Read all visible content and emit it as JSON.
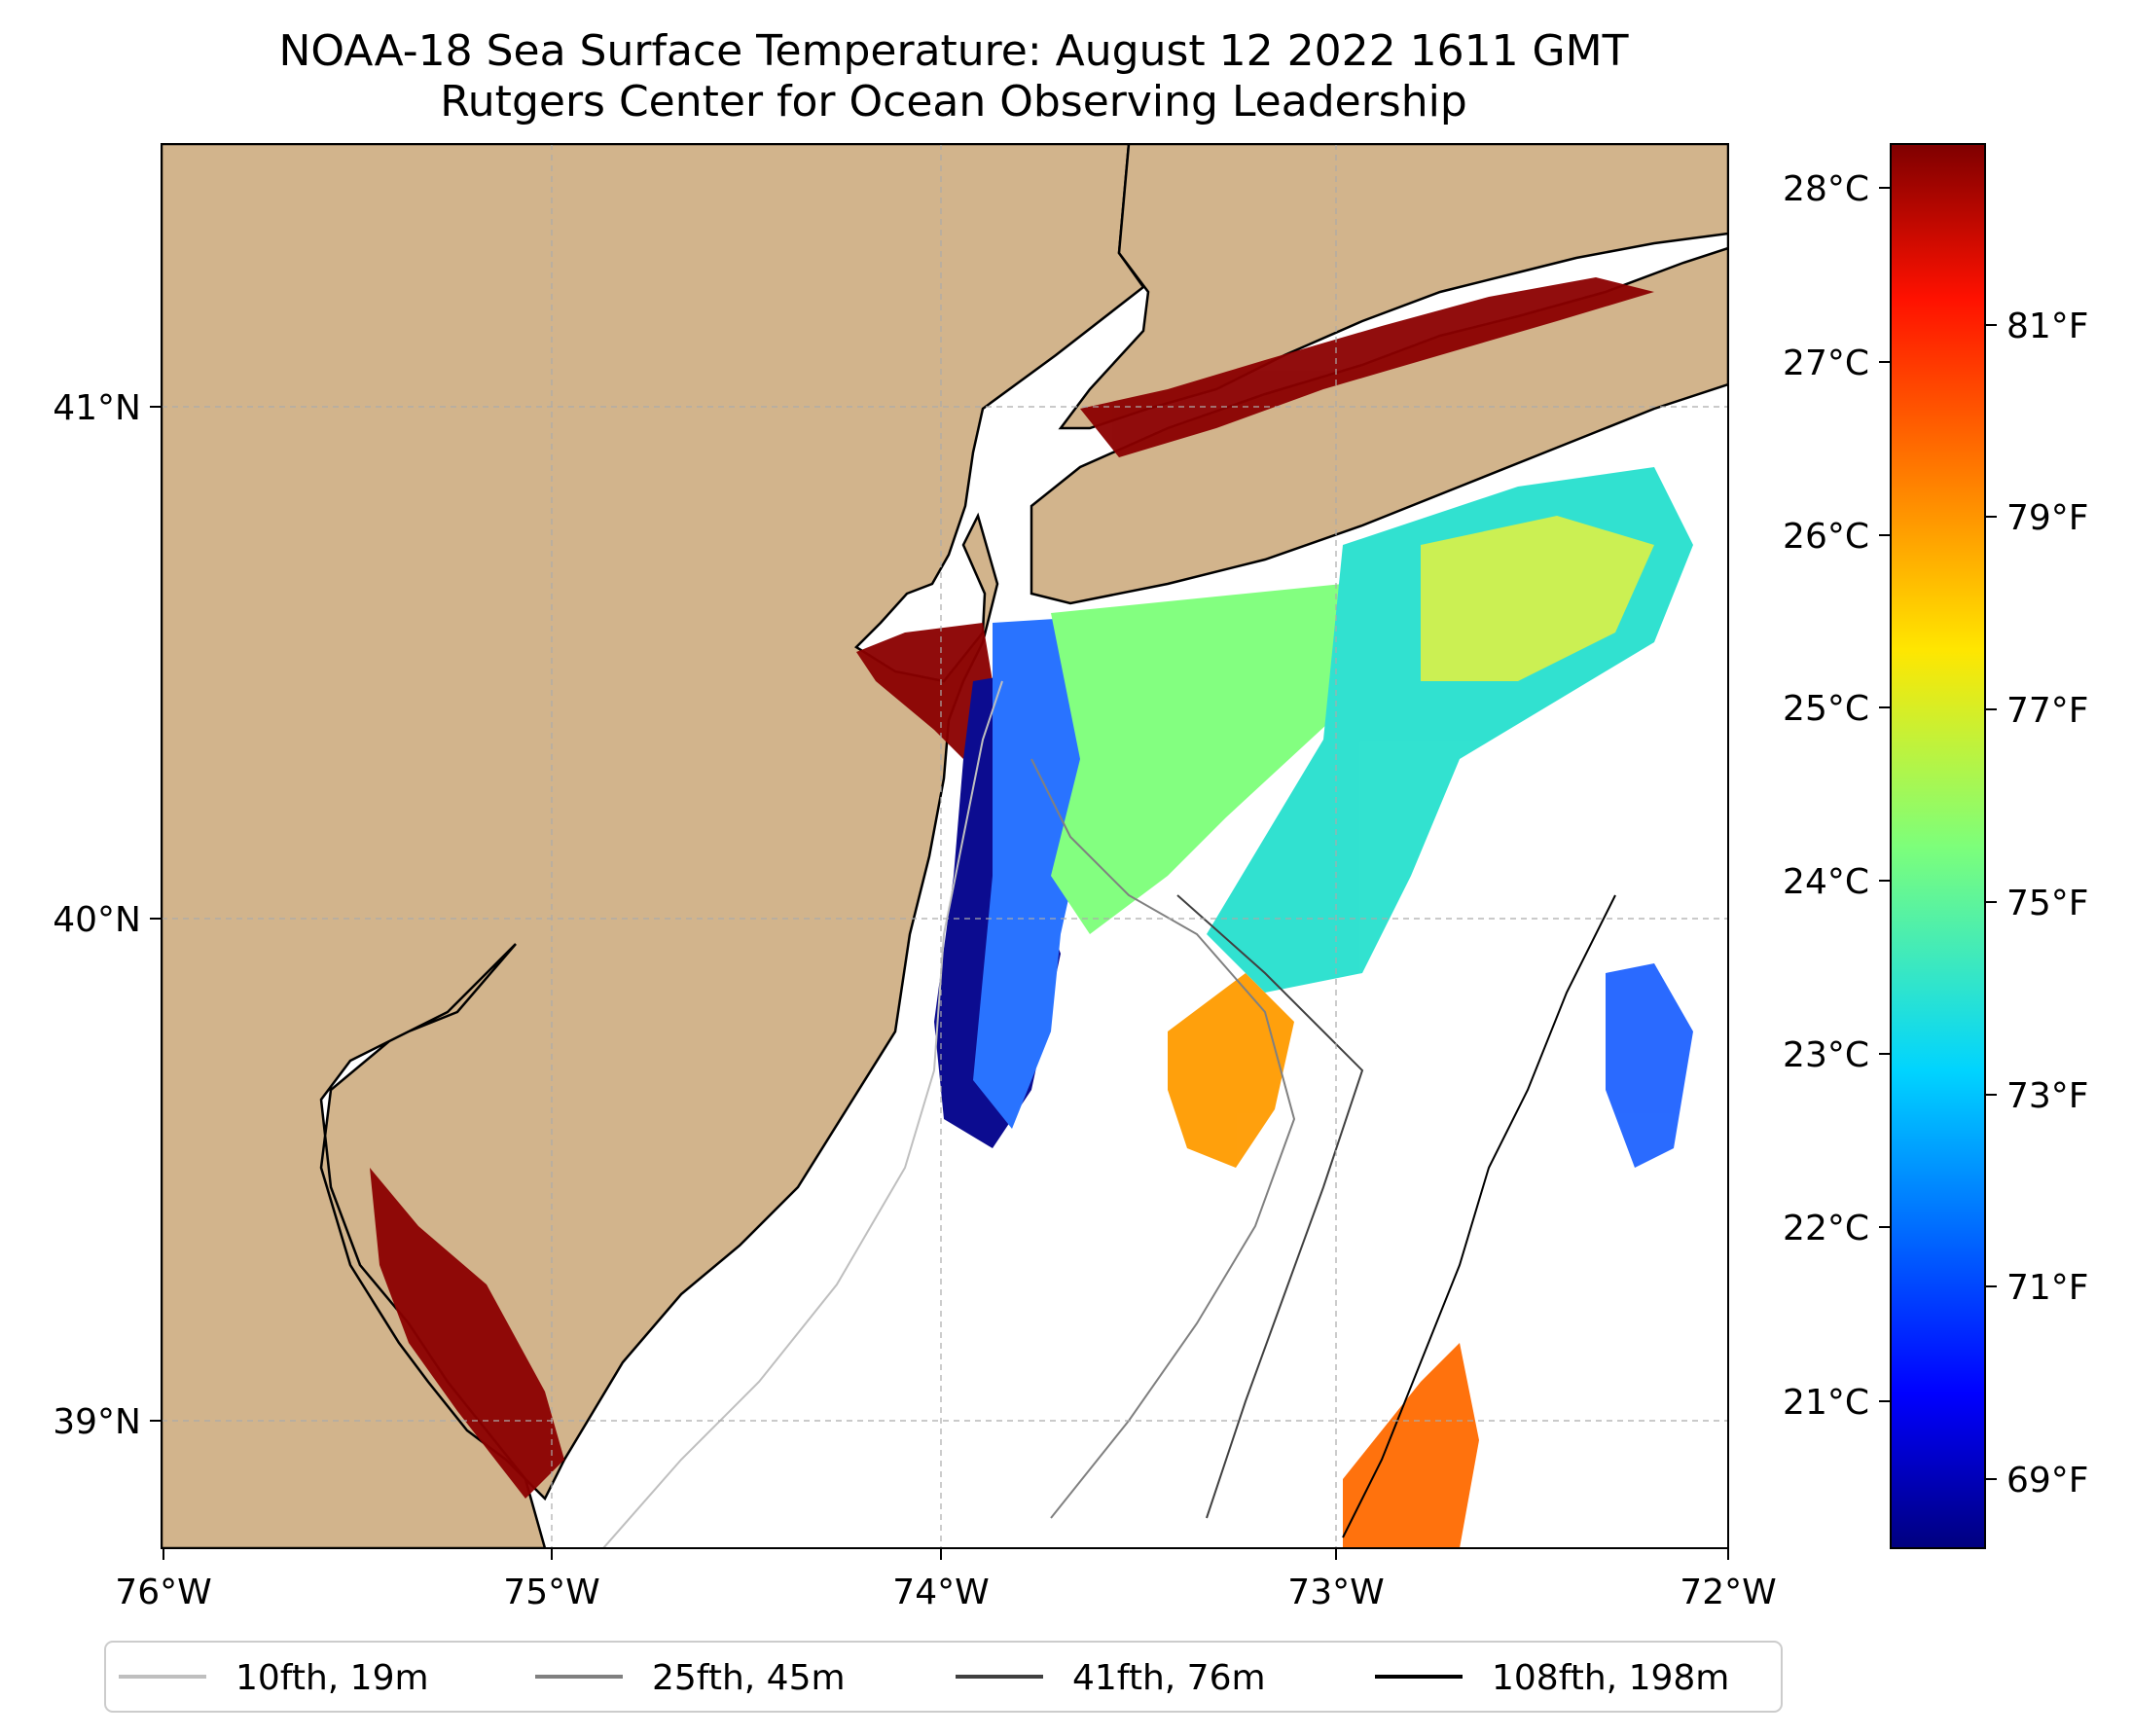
{
  "title_line1": "NOAA-18 Sea Surface Temperature: August 12 2022 1611 GMT",
  "title_line2": "Rutgers Center for Ocean Observing Leadership",
  "map": {
    "lon_range": [
      -76,
      -72
    ],
    "lat_range": [
      38.74,
      41.5
    ],
    "lon_ticks": [
      "76°W",
      "75°W",
      "74°W",
      "73°W",
      "72°W"
    ],
    "lat_ticks": [
      "41°N",
      "40°N",
      "39°N"
    ],
    "land_color": "#d2b48c",
    "gridlines": true
  },
  "colorbar": {
    "celsius_ticks": [
      "28°C",
      "27°C",
      "26°C",
      "25°C",
      "24°C",
      "23°C",
      "22°C",
      "21°C"
    ],
    "fahrenheit_ticks": [
      "81°F",
      "79°F",
      "77°F",
      "75°F",
      "73°F",
      "71°F",
      "69°F"
    ],
    "colormap": "jet",
    "range_c": [
      20.2,
      28.3
    ]
  },
  "legend": {
    "items": [
      {
        "label": "10fth, 19m",
        "color": "#bfbfbf"
      },
      {
        "label": "25fth, 45m",
        "color": "#808080"
      },
      {
        "label": "41fth, 76m",
        "color": "#404040"
      },
      {
        "label": "108fth, 198m",
        "color": "#000000"
      }
    ]
  }
}
